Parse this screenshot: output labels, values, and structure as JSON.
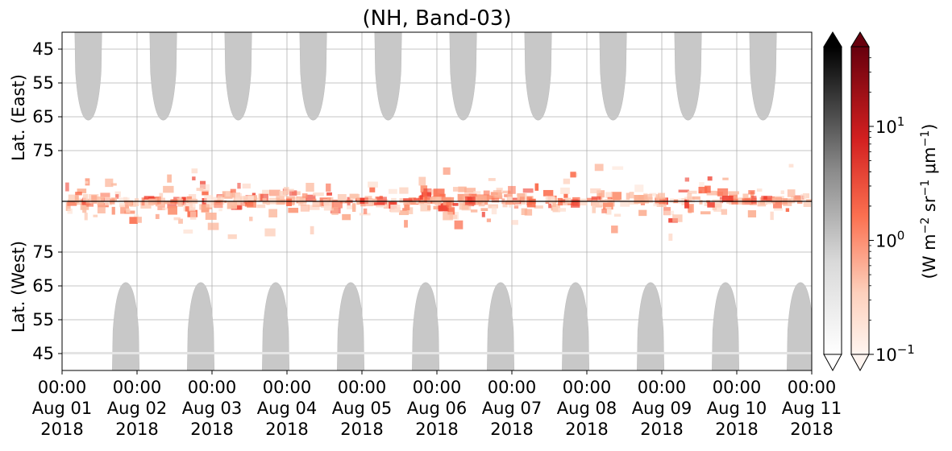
{
  "chart_data": {
    "type": "heatmap",
    "title": "(NH, Band-03)",
    "x_ticks": [
      {
        "time": "00:00",
        "date": "Aug 01",
        "year": "2018"
      },
      {
        "time": "00:00",
        "date": "Aug 02",
        "year": "2018"
      },
      {
        "time": "00:00",
        "date": "Aug 03",
        "year": "2018"
      },
      {
        "time": "00:00",
        "date": "Aug 04",
        "year": "2018"
      },
      {
        "time": "00:00",
        "date": "Aug 05",
        "year": "2018"
      },
      {
        "time": "00:00",
        "date": "Aug 06",
        "year": "2018"
      },
      {
        "time": "00:00",
        "date": "Aug 07",
        "year": "2018"
      },
      {
        "time": "00:00",
        "date": "Aug 08",
        "year": "2018"
      },
      {
        "time": "00:00",
        "date": "Aug 09",
        "year": "2018"
      },
      {
        "time": "00:00",
        "date": "Aug 10",
        "year": "2018"
      },
      {
        "time": "00:00",
        "date": "Aug 11",
        "year": "2018"
      }
    ],
    "xlim": [
      "2018-08-01 00:00",
      "2018-08-11 00:00"
    ],
    "east_panel": {
      "ylabel": "Lat. (East)",
      "yticks": [
        "45",
        "55",
        "65",
        "75"
      ],
      "ylim": [
        40,
        90
      ]
    },
    "west_panel": {
      "ylabel": "Lat. (West)",
      "yticks": [
        "75",
        "65",
        "55",
        "45"
      ],
      "ylim": [
        90,
        40
      ]
    },
    "grid": true,
    "sunlit_mask_color": "#c8c8c8",
    "emission_colormap": "Reds",
    "colorbars": [
      {
        "name": "gray",
        "scale": "log",
        "range": [
          0.1,
          50
        ]
      },
      {
        "name": "red",
        "scale": "log",
        "range": [
          0.1,
          50
        ],
        "ticks": [
          "10^-1",
          "10^0",
          "10^1"
        ]
      }
    ],
    "colorbar_label": "(W m^-2 sr^-1 μm^-1)",
    "colorbar_label_parts": {
      "base": "(W m",
      "exp1": "−2",
      "mid1": " sr",
      "exp2": "−1",
      "mid2": " μm",
      "exp3": "−1",
      "close": ")"
    },
    "cb_tick_labels": [
      {
        "base": "10",
        "exp": "1"
      },
      {
        "base": "10",
        "exp": "0"
      },
      {
        "base": "10",
        "exp": "−1"
      }
    ]
  }
}
